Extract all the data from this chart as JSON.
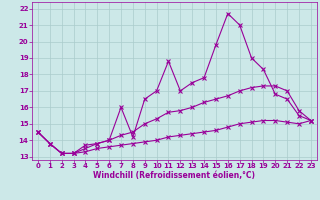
{
  "xlabel": "Windchill (Refroidissement éolien,°C)",
  "background_color": "#cce8e8",
  "grid_color": "#aacccc",
  "line_color": "#990099",
  "xlim": [
    -0.5,
    23.5
  ],
  "ylim": [
    12.8,
    22.4
  ],
  "xticks": [
    0,
    1,
    2,
    3,
    4,
    5,
    6,
    7,
    8,
    9,
    10,
    11,
    12,
    13,
    14,
    15,
    16,
    17,
    18,
    19,
    20,
    21,
    22,
    23
  ],
  "yticks": [
    13,
    14,
    15,
    16,
    17,
    18,
    19,
    20,
    21,
    22
  ],
  "series1_x": [
    0,
    1,
    2,
    3,
    4,
    5,
    6,
    7,
    8,
    9,
    10,
    11,
    12,
    13,
    14,
    15,
    16,
    17,
    18,
    19,
    20,
    21,
    22,
    23
  ],
  "series1_y": [
    14.5,
    13.8,
    13.2,
    13.2,
    13.7,
    13.8,
    14.0,
    16.0,
    14.2,
    16.5,
    17.0,
    18.8,
    17.0,
    17.5,
    17.8,
    19.8,
    21.7,
    21.0,
    19.0,
    18.3,
    16.8,
    16.5,
    15.5,
    15.2
  ],
  "series2_x": [
    0,
    1,
    2,
    3,
    4,
    5,
    6,
    7,
    8,
    9,
    10,
    11,
    12,
    13,
    14,
    15,
    16,
    17,
    18,
    19,
    20,
    21,
    22,
    23
  ],
  "series2_y": [
    14.5,
    13.8,
    13.2,
    13.2,
    13.5,
    13.8,
    14.0,
    14.3,
    14.5,
    15.0,
    15.3,
    15.7,
    15.8,
    16.0,
    16.3,
    16.5,
    16.7,
    17.0,
    17.2,
    17.3,
    17.3,
    17.0,
    15.8,
    15.2
  ],
  "series3_x": [
    0,
    1,
    2,
    3,
    4,
    5,
    6,
    7,
    8,
    9,
    10,
    11,
    12,
    13,
    14,
    15,
    16,
    17,
    18,
    19,
    20,
    21,
    22,
    23
  ],
  "series3_y": [
    14.5,
    13.8,
    13.2,
    13.2,
    13.3,
    13.5,
    13.6,
    13.7,
    13.8,
    13.9,
    14.0,
    14.2,
    14.3,
    14.4,
    14.5,
    14.6,
    14.8,
    15.0,
    15.1,
    15.2,
    15.2,
    15.1,
    15.0,
    15.2
  ]
}
